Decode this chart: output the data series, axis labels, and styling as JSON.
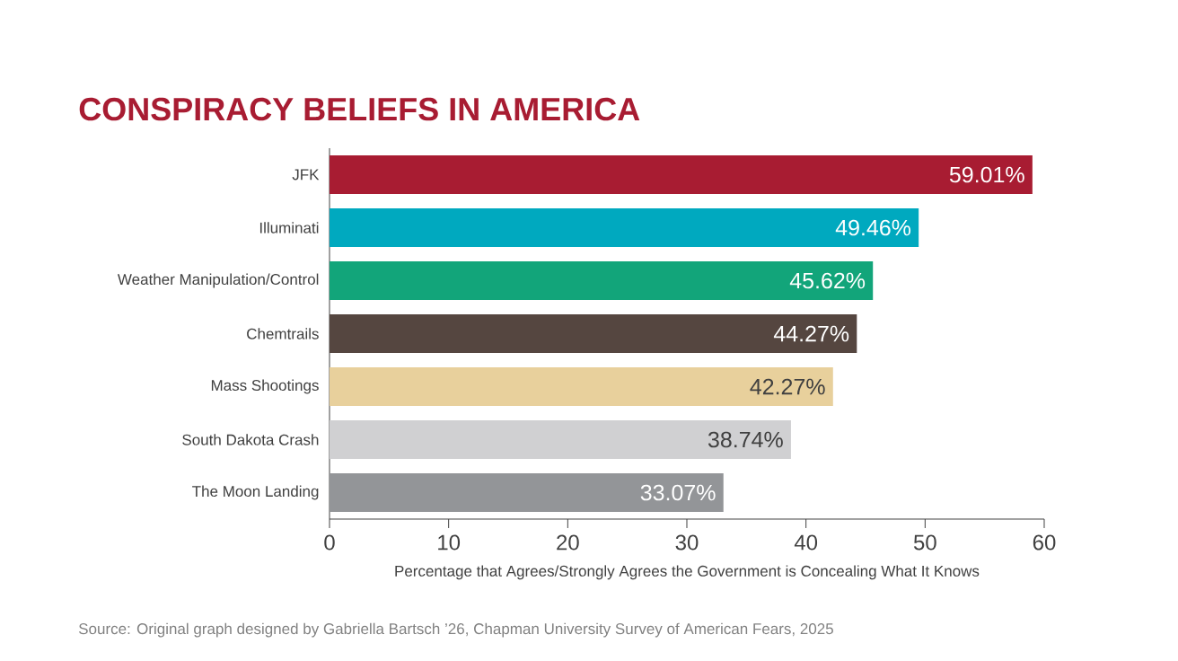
{
  "chart_data": {
    "type": "bar",
    "orientation": "horizontal",
    "title": "CONSPIRACY BELIEFS IN AMERICA",
    "xlabel": "Percentage that Agrees/Strongly Agrees the Government is Concealing What It Knows",
    "categories": [
      "JFK",
      "Illuminati",
      "Weather Manipulation/Control",
      "Chemtrails",
      "Mass Shootings",
      "South Dakota Crash",
      "The Moon Landing"
    ],
    "values": [
      59.01,
      49.46,
      45.62,
      44.27,
      42.27,
      38.74,
      33.07
    ],
    "value_labels": [
      "59.01%",
      "49.46%",
      "45.62%",
      "44.27%",
      "42.27%",
      "38.74%",
      "33.07%"
    ],
    "colors": [
      "#a81c32",
      "#00a9bf",
      "#12a57a",
      "#554640",
      "#e8d09c",
      "#d0d0d2",
      "#939598"
    ],
    "xlim": [
      0,
      60
    ],
    "xticks": [
      0,
      10,
      20,
      30,
      40,
      50,
      60
    ],
    "grid": false,
    "annotations": [
      "Source: Original graph designed by Gabriella Bartsch ’26, Chapman University Survey of American Fears, 2025"
    ]
  }
}
